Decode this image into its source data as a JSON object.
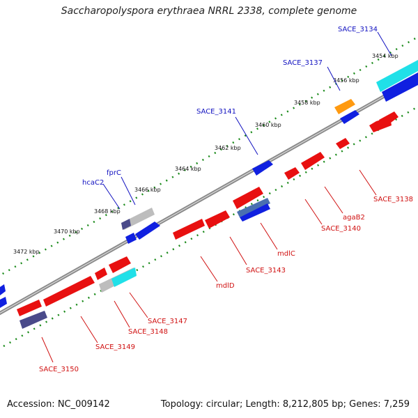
{
  "title": "Saccharopolyspora erythraea NRRL 2338, complete genome",
  "footer": {
    "accession": "Accession: NC_009142",
    "summary": "Topology: circular; Length: 8,212,805 bp; Genes: 7,259"
  },
  "ticks": [
    "3454 kbp",
    "3456 kbp",
    "3458 kbp",
    "3460 kbp",
    "3462 kbp",
    "3464 kbp",
    "3466 kbp",
    "3468 kbp",
    "3470 kbp",
    "3472 kbp"
  ],
  "forward_labels": [
    "SACE_3134",
    "SACE_3137",
    "SACE_3141",
    "fprC",
    "hcaC2"
  ],
  "reverse_labels": [
    "SACE_3138",
    "agaB2",
    "SACE_3140",
    "mdlC",
    "SACE_3143",
    "mdlD",
    "SACE_3147",
    "SACE_3148",
    "SACE_3149",
    "SACE_3150"
  ],
  "colors": {
    "backbone": "#8a8a8a",
    "dots": "#1a8a1a",
    "forward_gene": "#1020e0",
    "reverse_gene": "#e81010",
    "cyan": "#20e0e8",
    "orange": "#ff9a10",
    "gray": "#bdbdbd",
    "purple": "#4a4a8a"
  }
}
